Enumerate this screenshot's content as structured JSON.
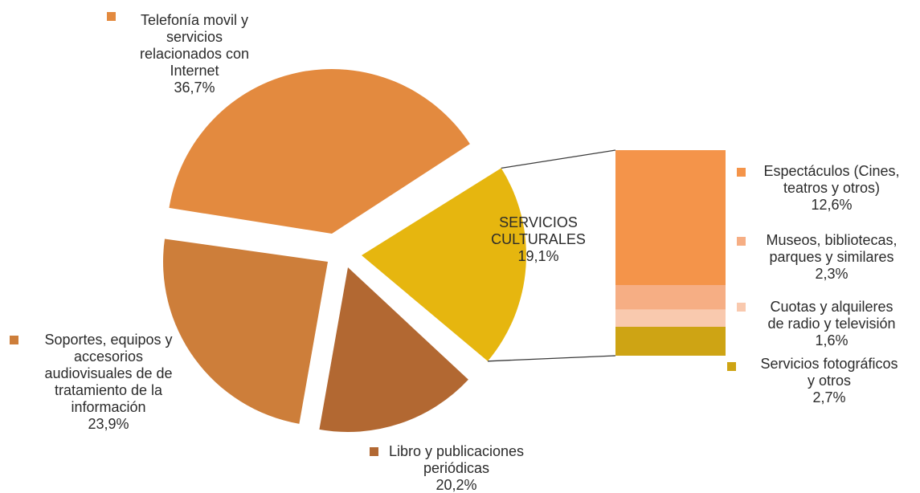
{
  "chart_data": {
    "type": "pie",
    "title": "",
    "unit": "%",
    "slices": [
      {
        "lines": [
          "Telefonía movil y",
          "servicios",
          "relacionados con",
          "Internet"
        ],
        "value_label": "36,7%",
        "value": 36.7,
        "color": "#E38A3F"
      },
      {
        "lines": [
          "SERVICIOS",
          "CULTURALES"
        ],
        "value_label": "19,1%",
        "value": 19.1,
        "color": "#E6B60F"
      },
      {
        "lines": [
          "Libro y publicaciones",
          "periódicas"
        ],
        "value_label": "20,2%",
        "value": 20.2,
        "color": "#B26832"
      },
      {
        "lines": [
          "Soportes, equipos y",
          "accesorios",
          "audiovisuales  de de",
          "tratamiento de la",
          "información"
        ],
        "value_label": "23,9%",
        "value": 23.9,
        "color": "#CD7E3A"
      }
    ],
    "breakdown": {
      "parent": "SERVICIOS CULTURALES",
      "items": [
        {
          "lines": [
            "Espectáculos (Cines,",
            "teatros y otros)"
          ],
          "value_label": "12,6%",
          "value": 12.6,
          "color": "#F4944A"
        },
        {
          "lines": [
            "Museos, bibliotecas,",
            "parques y similares"
          ],
          "value_label": "2,3%",
          "value": 2.3,
          "color": "#F6AE84"
        },
        {
          "lines": [
            "Cuotas y alquileres",
            "de radio y televisión"
          ],
          "value_label": "1,6%",
          "value": 1.6,
          "color": "#F9C9AE"
        },
        {
          "lines": [
            "Servicios fotográficos",
            "y otros"
          ],
          "value_label": "2,7%",
          "value": 2.7,
          "color": "#CEA414"
        }
      ]
    }
  }
}
